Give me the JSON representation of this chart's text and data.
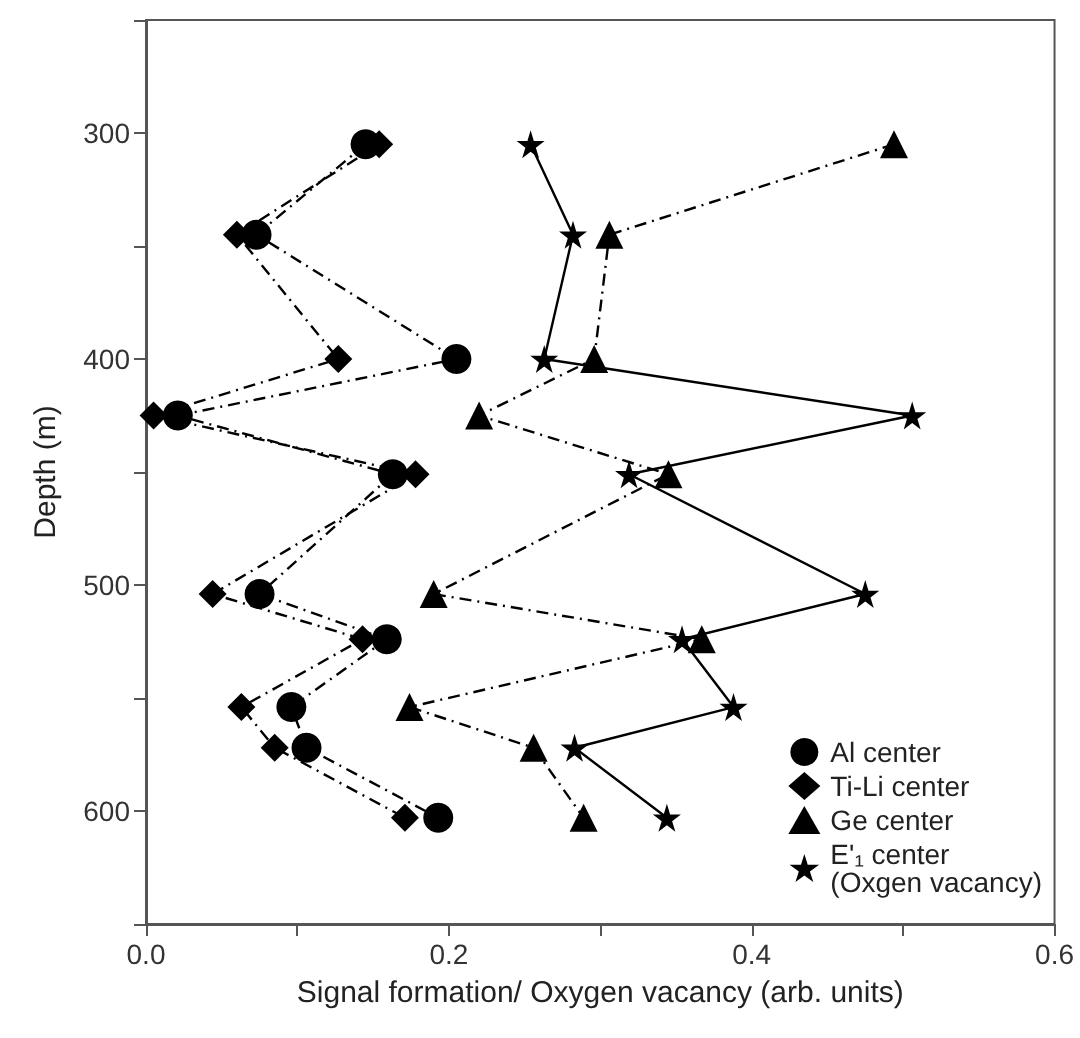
{
  "chart_data": {
    "type": "line",
    "xlabel": "Signal formation/ Oxygen vacancy (arb. units)",
    "ylabel": "Depth (m)",
    "xlim": [
      0,
      0.6
    ],
    "xticks": [
      {
        "value": 0,
        "label": "0.0"
      },
      {
        "value": 0.1,
        "label": null
      },
      {
        "value": 0.2,
        "label": "0.2"
      },
      {
        "value": 0.3,
        "label": null
      },
      {
        "value": 0.4,
        "label": "0.4"
      },
      {
        "value": 0.5,
        "label": null
      },
      {
        "value": 0.6,
        "label": "0.6"
      }
    ],
    "ylim": [
      650,
      250
    ],
    "yticks": [
      {
        "value": 250,
        "label": null
      },
      300,
      {
        "value": 350,
        "label": null
      },
      400,
      {
        "value": 450,
        "label": null
      },
      500,
      {
        "value": 550,
        "label": null
      },
      600,
      {
        "value": 650,
        "label": null
      }
    ],
    "grid": false,
    "legend": "bottom right",
    "series": [
      {
        "name": "Al center",
        "color": "#000000",
        "marker": "circle",
        "line_style": "dashed",
        "x": [
          0.145,
          0.073,
          0.205,
          0.021,
          0.163,
          0.075,
          0.159,
          0.096,
          0.106,
          0.193
        ],
        "values": [
          305,
          345,
          400,
          425,
          451,
          504,
          524,
          554,
          572,
          603
        ]
      },
      {
        "name": "Ti-Li center",
        "color": "#000000",
        "marker": "diamond",
        "line_style": "dashed",
        "x": [
          0.154,
          0.06,
          0.127,
          0.005,
          0.178,
          0.044,
          0.143,
          0.063,
          0.085,
          0.171
        ],
        "values": [
          305,
          345,
          400,
          425,
          451,
          504,
          524,
          554,
          572,
          603
        ]
      },
      {
        "name": "Ge center",
        "color": "#000000",
        "marker": "triangle",
        "line_style": "dashed",
        "x": [
          0.494,
          0.306,
          0.296,
          0.22,
          0.345,
          0.19,
          0.367,
          0.174,
          0.256,
          0.289
        ],
        "values": [
          305,
          345,
          400,
          425,
          451,
          504,
          524,
          554,
          572,
          603
        ]
      },
      {
        "name": "E'₁ center\n(Oxgen vacancy)",
        "color": "#000000",
        "marker": "star",
        "line_style": "solid",
        "x": [
          0.254,
          0.282,
          0.263,
          0.506,
          0.319,
          0.475,
          0.354,
          0.388,
          0.283,
          0.344
        ],
        "values": [
          305,
          345,
          400,
          425,
          451,
          504,
          524,
          554,
          572,
          603
        ]
      }
    ]
  }
}
